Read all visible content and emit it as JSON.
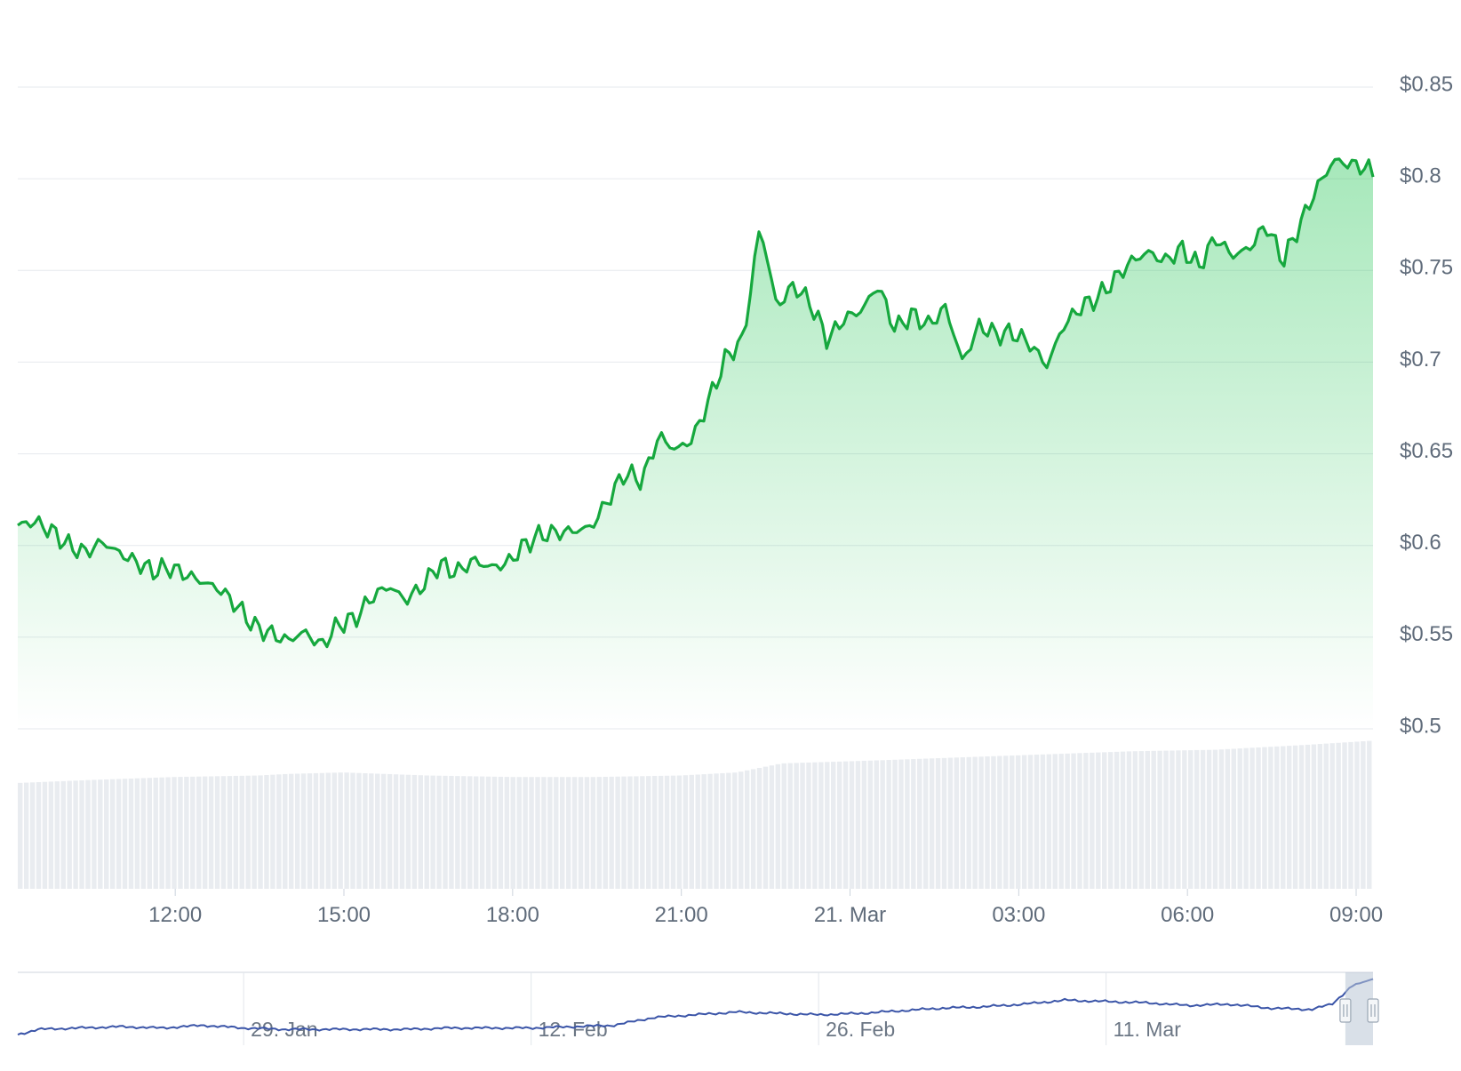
{
  "chart_data": {
    "type": "line",
    "currency_prefix": "$",
    "price": {
      "ylim": [
        0.5,
        0.85
      ],
      "yticks": [
        {
          "value": 0.85,
          "label": "$0.85"
        },
        {
          "value": 0.8,
          "label": "$0.8"
        },
        {
          "value": 0.75,
          "label": "$0.75"
        },
        {
          "value": 0.7,
          "label": "$0.7"
        },
        {
          "value": 0.65,
          "label": "$0.65"
        },
        {
          "value": 0.6,
          "label": "$0.6"
        },
        {
          "value": 0.55,
          "label": "$0.55"
        },
        {
          "value": 0.5,
          "label": "$0.5"
        }
      ],
      "x_hours": [
        9.2,
        9.5,
        9.8,
        10.1,
        10.4,
        10.7,
        11.0,
        11.3,
        11.6,
        11.9,
        12.2,
        12.5,
        12.8,
        13.1,
        13.4,
        13.7,
        14.0,
        14.3,
        14.6,
        14.9,
        15.2,
        15.5,
        15.8,
        16.1,
        16.4,
        16.7,
        17.0,
        17.3,
        17.6,
        17.9,
        18.2,
        18.5,
        18.8,
        19.1,
        19.4,
        19.7,
        20.0,
        20.3,
        20.6,
        20.9,
        21.2,
        21.5,
        21.8,
        22.1,
        22.4,
        22.7,
        23.0,
        23.3,
        23.6,
        23.9,
        24.2,
        24.5,
        24.8,
        25.1,
        25.4,
        25.7,
        26.0,
        26.3,
        26.6,
        26.9,
        27.2,
        27.5,
        27.8,
        28.1,
        28.4,
        28.7,
        29.0,
        29.3,
        29.6,
        29.9,
        30.2,
        30.5,
        30.8,
        31.1,
        31.4,
        31.7,
        32.0,
        32.3,
        32.6,
        32.9,
        33.2,
        33.3
      ],
      "values": [
        0.611,
        0.613,
        0.608,
        0.6,
        0.596,
        0.602,
        0.596,
        0.591,
        0.586,
        0.588,
        0.584,
        0.58,
        0.576,
        0.567,
        0.556,
        0.552,
        0.548,
        0.553,
        0.545,
        0.557,
        0.56,
        0.572,
        0.578,
        0.57,
        0.578,
        0.59,
        0.585,
        0.592,
        0.588,
        0.59,
        0.6,
        0.606,
        0.607,
        0.608,
        0.61,
        0.625,
        0.64,
        0.635,
        0.66,
        0.652,
        0.658,
        0.68,
        0.703,
        0.712,
        0.775,
        0.73,
        0.742,
        0.732,
        0.712,
        0.724,
        0.728,
        0.742,
        0.718,
        0.726,
        0.72,
        0.73,
        0.7,
        0.72,
        0.715,
        0.716,
        0.71,
        0.698,
        0.72,
        0.73,
        0.735,
        0.745,
        0.755,
        0.76,
        0.755,
        0.762,
        0.752,
        0.768,
        0.758,
        0.762,
        0.775,
        0.755,
        0.775,
        0.795,
        0.81,
        0.808,
        0.806,
        0.801
      ]
    },
    "volume": {
      "x_hours": [
        9.2,
        10.5,
        12.0,
        13.5,
        14.0,
        15.0,
        16.5,
        18.0,
        19.5,
        21.0,
        22.0,
        22.8,
        24.5,
        26.0,
        27.5,
        29.0,
        30.5,
        32.0,
        33.3
      ],
      "values": [
        0.7,
        0.72,
        0.74,
        0.75,
        0.76,
        0.77,
        0.75,
        0.74,
        0.74,
        0.75,
        0.77,
        0.83,
        0.85,
        0.87,
        0.89,
        0.91,
        0.92,
        0.95,
        0.98
      ]
    },
    "xaxis": {
      "range_hours": [
        9.2,
        33.3
      ],
      "ticks": [
        {
          "hour": 12,
          "label": "12:00"
        },
        {
          "hour": 15,
          "label": "15:00"
        },
        {
          "hour": 18,
          "label": "18:00"
        },
        {
          "hour": 21,
          "label": "21:00"
        },
        {
          "hour": 24,
          "label": "21. Mar"
        },
        {
          "hour": 27,
          "label": "03:00"
        },
        {
          "hour": 30,
          "label": "06:00"
        },
        {
          "hour": 33,
          "label": "09:00"
        }
      ]
    },
    "navigator": {
      "range_days": [
        0,
        66
      ],
      "ticks": [
        {
          "day": 11,
          "label": "29. Jan"
        },
        {
          "day": 25,
          "label": "12. Feb"
        },
        {
          "day": 39,
          "label": "26. Feb"
        },
        {
          "day": 53,
          "label": "11. Mar"
        }
      ],
      "days": [
        0,
        1,
        3,
        5,
        7,
        9,
        11,
        13,
        15,
        17,
        19,
        21,
        23,
        25,
        27,
        29,
        31,
        33,
        35,
        37,
        39,
        41,
        43,
        45,
        47,
        49,
        51,
        53,
        55,
        57,
        59,
        61,
        63,
        64,
        65,
        66
      ],
      "values": [
        0.48,
        0.52,
        0.53,
        0.54,
        0.53,
        0.55,
        0.53,
        0.52,
        0.52,
        0.52,
        0.52,
        0.53,
        0.53,
        0.53,
        0.54,
        0.55,
        0.61,
        0.63,
        0.65,
        0.64,
        0.63,
        0.64,
        0.66,
        0.68,
        0.69,
        0.71,
        0.74,
        0.73,
        0.72,
        0.7,
        0.71,
        0.68,
        0.67,
        0.71,
        0.85,
        0.9
      ],
      "ylim": [
        0.4,
        0.95
      ],
      "selection_days": [
        65,
        66
      ]
    }
  }
}
